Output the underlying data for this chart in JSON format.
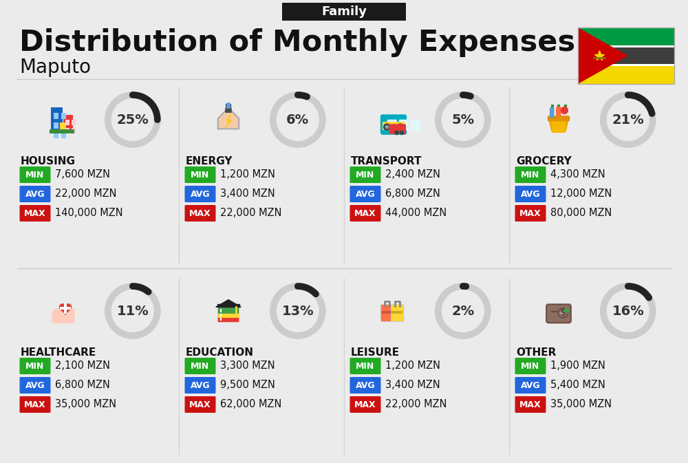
{
  "title": "Distribution of Monthly Expenses",
  "subtitle": "Family",
  "city": "Maputo",
  "background_color": "#ebebeb",
  "header_bg": "#1a1a1a",
  "header_text_color": "#ffffff",
  "title_color": "#111111",
  "city_color": "#111111",
  "categories": [
    {
      "name": "HOUSING",
      "percent": 25,
      "min": "7,600 MZN",
      "avg": "22,000 MZN",
      "max": "140,000 MZN",
      "row": 0,
      "col": 0
    },
    {
      "name": "ENERGY",
      "percent": 6,
      "min": "1,200 MZN",
      "avg": "3,400 MZN",
      "max": "22,000 MZN",
      "row": 0,
      "col": 1
    },
    {
      "name": "TRANSPORT",
      "percent": 5,
      "min": "2,400 MZN",
      "avg": "6,800 MZN",
      "max": "44,000 MZN",
      "row": 0,
      "col": 2
    },
    {
      "name": "GROCERY",
      "percent": 21,
      "min": "4,300 MZN",
      "avg": "12,000 MZN",
      "max": "80,000 MZN",
      "row": 0,
      "col": 3
    },
    {
      "name": "HEALTHCARE",
      "percent": 11,
      "min": "2,100 MZN",
      "avg": "6,800 MZN",
      "max": "35,000 MZN",
      "row": 1,
      "col": 0
    },
    {
      "name": "EDUCATION",
      "percent": 13,
      "min": "3,300 MZN",
      "avg": "9,500 MZN",
      "max": "62,000 MZN",
      "row": 1,
      "col": 1
    },
    {
      "name": "LEISURE",
      "percent": 2,
      "min": "1,200 MZN",
      "avg": "3,400 MZN",
      "max": "22,000 MZN",
      "row": 1,
      "col": 2
    },
    {
      "name": "OTHER",
      "percent": 16,
      "min": "1,900 MZN",
      "avg": "5,400 MZN",
      "max": "35,000 MZN",
      "row": 1,
      "col": 3
    }
  ],
  "min_color": "#22aa22",
  "avg_color": "#2266dd",
  "max_color": "#cc1111",
  "label_text_color": "#ffffff",
  "value_text_color": "#111111",
  "circle_bg_color": "#cccccc",
  "circle_arc_color": "#222222",
  "divider_color": "#cccccc",
  "flag_green": "#009A44",
  "flag_black": "#3d3d3d",
  "flag_yellow": "#F5D800",
  "flag_red": "#CC0000",
  "flag_white": "#ffffff"
}
